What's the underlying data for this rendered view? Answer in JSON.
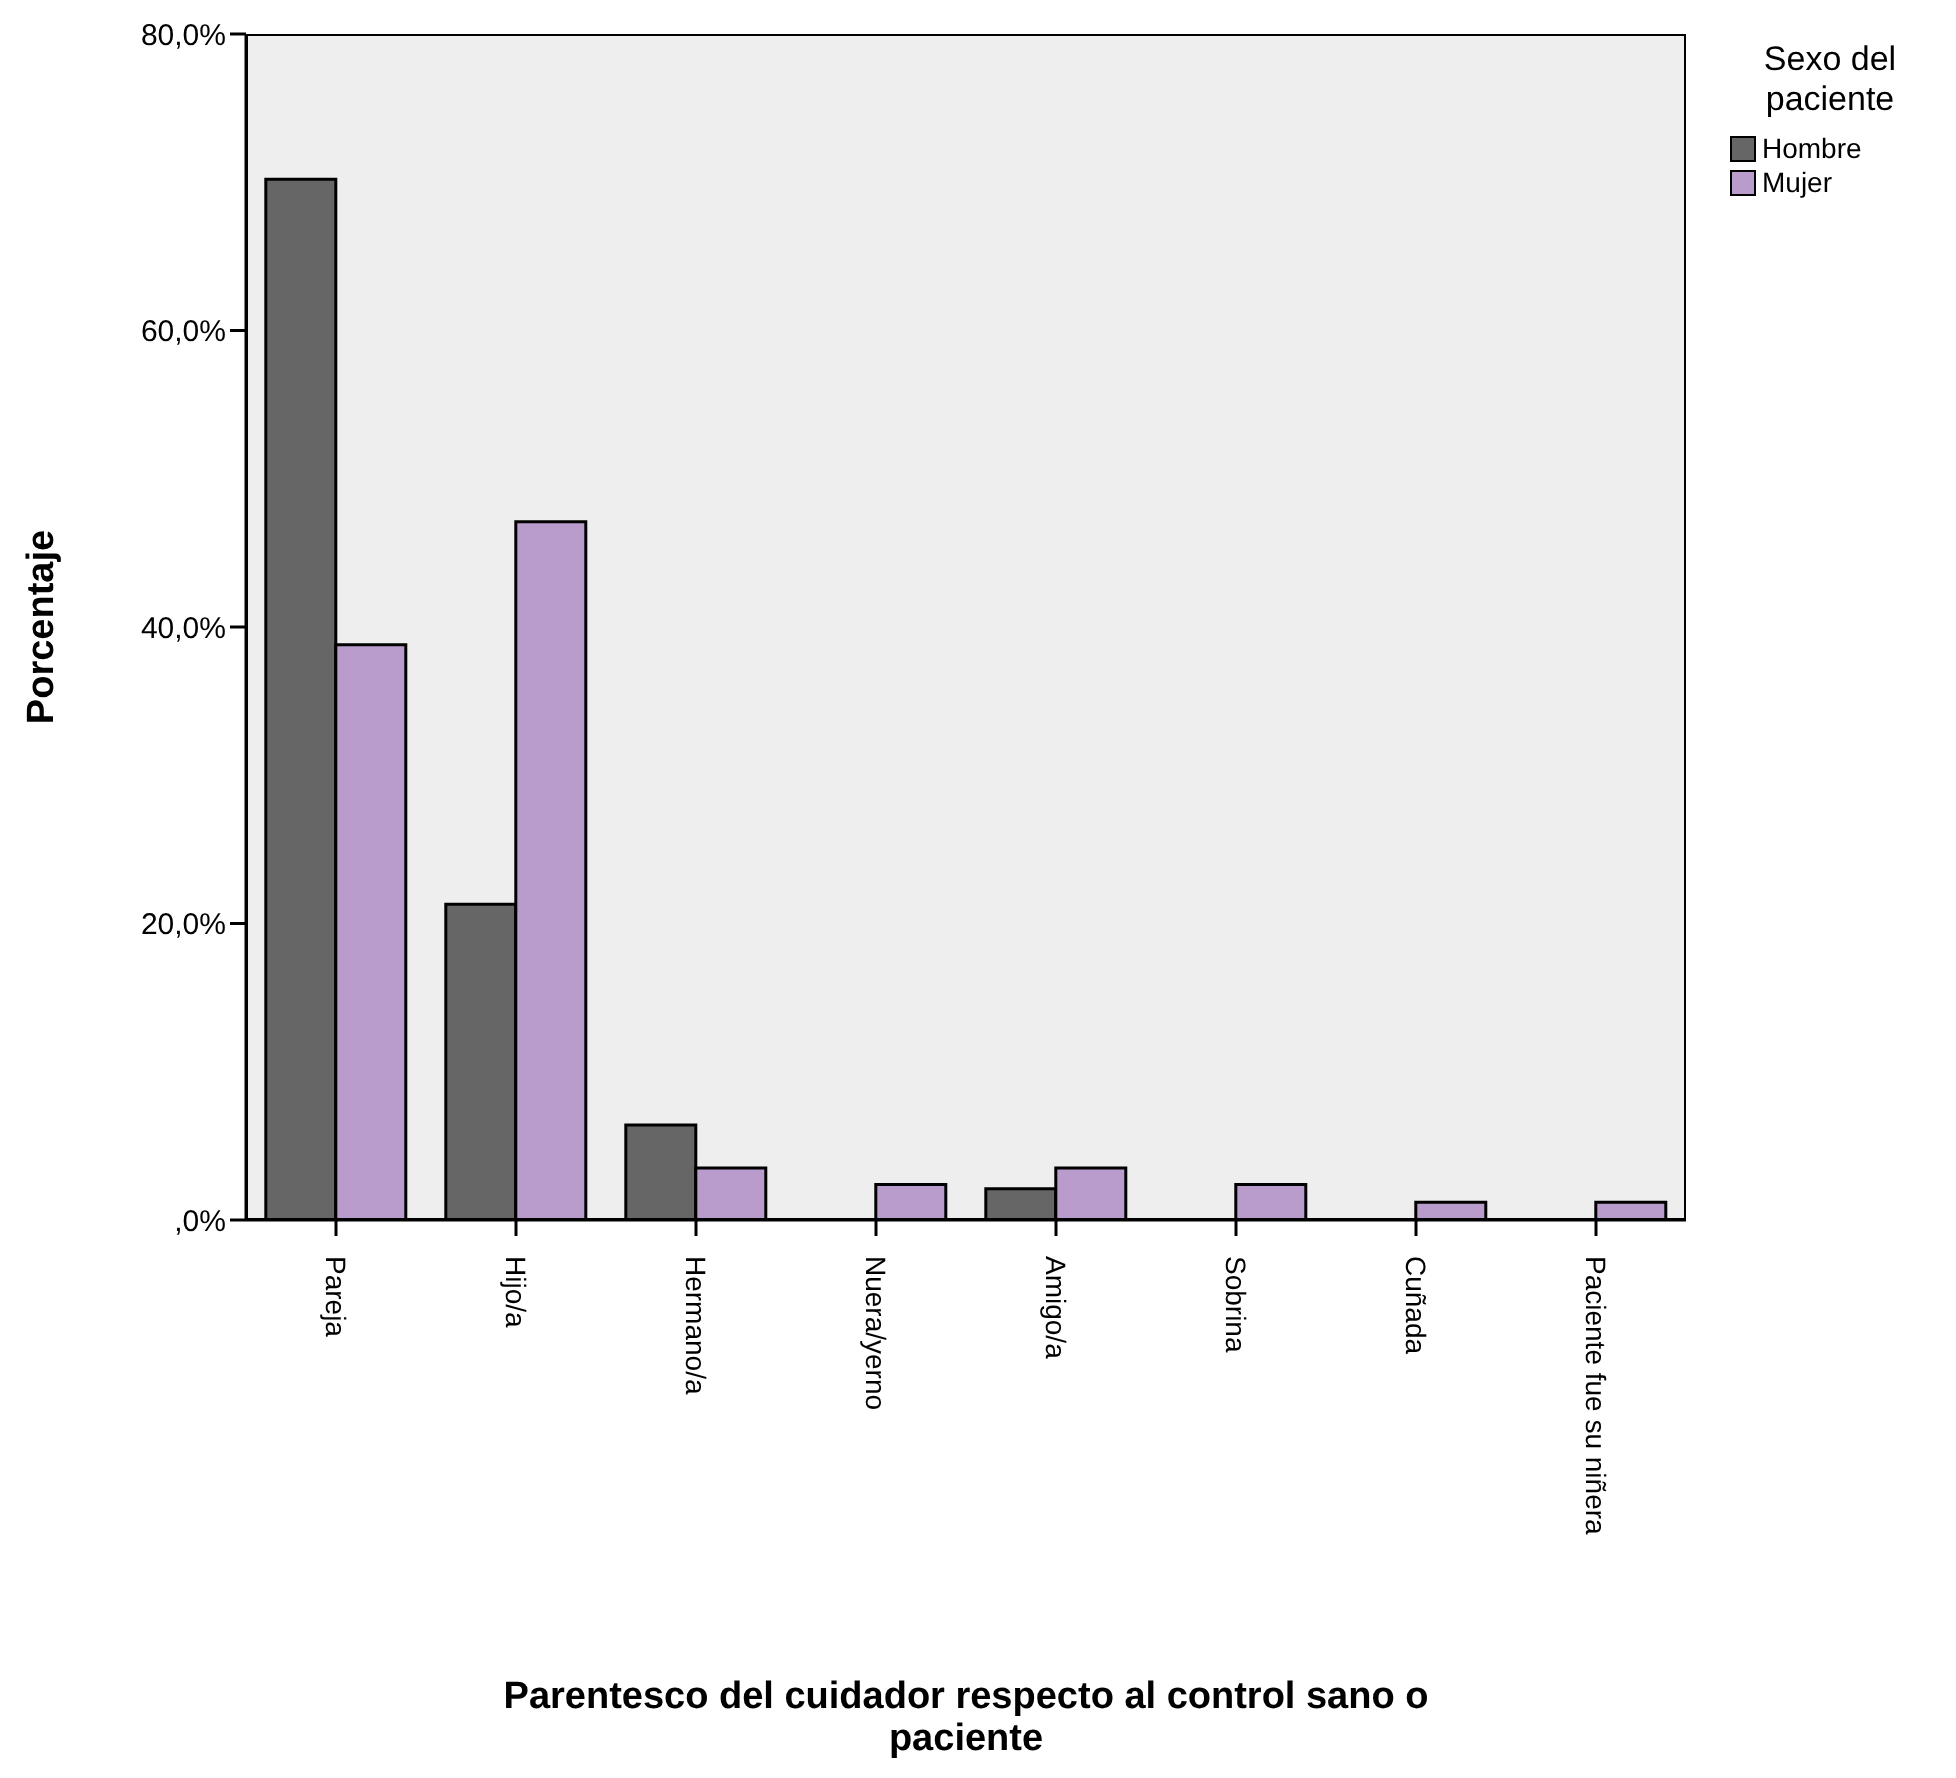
{
  "chart_data": {
    "type": "bar",
    "xlabel": "Parentesco del cuidador respecto al control sano o paciente",
    "ylabel": "Porcentaje",
    "legend_title": "Sexo del paciente",
    "categories": [
      "Pareja",
      "Hijo/a",
      "Hermano/a",
      "Nuera/yerno",
      "Amigo/a",
      "Sobrina",
      "Cuñada",
      "Paciente fue su niñera"
    ],
    "series": [
      {
        "name": "Hombre",
        "color": "#666666",
        "values": [
          70.2,
          21.3,
          6.4,
          0,
          2.1,
          0,
          0,
          0
        ]
      },
      {
        "name": "Mujer",
        "color": "#b99ccb",
        "values": [
          38.8,
          47.1,
          3.5,
          2.4,
          3.5,
          2.4,
          1.2,
          1.2
        ]
      }
    ],
    "ylim": [
      0,
      80
    ],
    "yticks": [
      {
        "value": 0,
        "label": ",0%"
      },
      {
        "value": 20,
        "label": "20,0%"
      },
      {
        "value": 40,
        "label": "40,0%"
      },
      {
        "value": 60,
        "label": "60,0%"
      },
      {
        "value": 80,
        "label": "80,0%"
      }
    ],
    "grid": false,
    "legend": "top right"
  }
}
